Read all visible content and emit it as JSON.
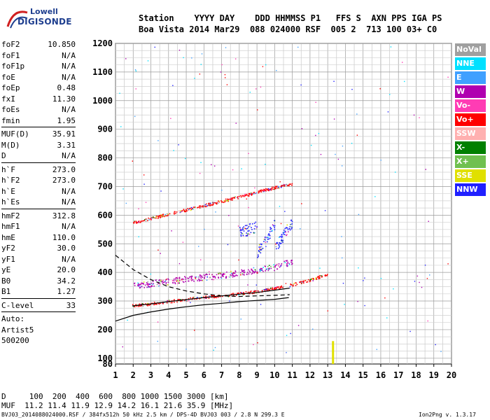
{
  "logo": {
    "line1": "Lowell",
    "line2": "DIGISONDE"
  },
  "header": {
    "labels": "Station    YYYY DAY    DDD HHMMSS P1   FFS S  AXN PPS IGA PS",
    "values": "Boa Vista 2014 Mar29  088 024000 RSF  005 2  713 100 03+ C0"
  },
  "params": {
    "group1": [
      {
        "name": "foF2",
        "value": "10.850"
      },
      {
        "name": "foF1",
        "value": "N/A"
      },
      {
        "name": "foF1p",
        "value": "N/A"
      },
      {
        "name": "foE",
        "value": "N/A"
      },
      {
        "name": "foEp",
        "value": "0.48"
      },
      {
        "name": "fxI",
        "value": "11.30"
      },
      {
        "name": "foEs",
        "value": "N/A"
      },
      {
        "name": "fmin",
        "value": "1.95"
      }
    ],
    "group2": [
      {
        "name": "MUF(D)",
        "value": "35.91"
      },
      {
        "name": "M(D)",
        "value": "3.31"
      },
      {
        "name": "D",
        "value": "N/A"
      }
    ],
    "group3": [
      {
        "name": "h`F",
        "value": "273.0"
      },
      {
        "name": "h`F2",
        "value": "273.0"
      },
      {
        "name": "h`E",
        "value": "N/A"
      },
      {
        "name": "h`Es",
        "value": "N/A"
      }
    ],
    "group4": [
      {
        "name": "hmF2",
        "value": "312.8"
      },
      {
        "name": "hmF1",
        "value": "N/A"
      },
      {
        "name": "hmE",
        "value": "110.0"
      },
      {
        "name": "yF2",
        "value": "30.0"
      },
      {
        "name": "yF1",
        "value": "N/A"
      },
      {
        "name": "yE",
        "value": "20.0"
      },
      {
        "name": "B0",
        "value": "34.2"
      },
      {
        "name": "B1",
        "value": "1.27"
      }
    ],
    "group5": [
      {
        "name": "C-level",
        "value": "33"
      }
    ],
    "auto": [
      "Auto:",
      "Artist5",
      "500200"
    ]
  },
  "legend": [
    {
      "label": "NoVal",
      "color": "#a0a0a0"
    },
    {
      "label": "NNE",
      "color": "#00e0ff"
    },
    {
      "label": "E",
      "color": "#40a0ff"
    },
    {
      "label": "W",
      "color": "#b000b0"
    },
    {
      "label": "Vo-",
      "color": "#ff3cb4"
    },
    {
      "label": "Vo+",
      "color": "#ff0000"
    },
    {
      "label": "SSW",
      "color": "#ffb0b0"
    },
    {
      "label": "X-",
      "color": "#008000"
    },
    {
      "label": "X+",
      "color": "#70c050"
    },
    {
      "label": "SSE",
      "color": "#e0e000"
    },
    {
      "label": "NNW",
      "color": "#2020ff"
    }
  ],
  "muf_table": {
    "d_label": "D",
    "d_values": [
      "100",
      "200",
      "400",
      "600",
      "800",
      "1000",
      "1500",
      "3000"
    ],
    "d_unit": "[km]",
    "muf_label": "MUF",
    "muf_values": [
      "11.2",
      "11.4",
      "11.9",
      "12.9",
      "14.2",
      "16.1",
      "21.6",
      "35.9"
    ],
    "muf_unit": "[MHz]"
  },
  "footer": {
    "left": "BVJ03_2014088024000.RSF / 384fx512h 50 kHz 2.5 km / DPS-4D BVJ03 003 / 2.8 N 299.3 E",
    "right": "Ion2Png v. 1.3.17"
  },
  "chart_data": {
    "type": "scatter",
    "xlim": [
      1,
      20
    ],
    "ylim": [
      80,
      1200
    ],
    "x_ticks": [
      1,
      2,
      3,
      4,
      5,
      6,
      7,
      8,
      9,
      10,
      11,
      12,
      13,
      14,
      15,
      16,
      17,
      18,
      19,
      20
    ],
    "y_ticks": [
      80,
      100,
      200,
      300,
      400,
      500,
      600,
      700,
      800,
      900,
      1000,
      1100,
      1200
    ],
    "grid": true,
    "legend_position": "right",
    "traces": [
      {
        "name": "Vo+",
        "points": [
          [
            1.95,
            285
          ],
          [
            3,
            292
          ],
          [
            4,
            300
          ],
          [
            5,
            307
          ],
          [
            6,
            315
          ],
          [
            7,
            320
          ],
          [
            8,
            327
          ],
          [
            9,
            335
          ],
          [
            10,
            345
          ],
          [
            11,
            358
          ],
          [
            12,
            375
          ],
          [
            13,
            395
          ]
        ]
      },
      {
        "name": "Vo+",
        "points": [
          [
            2,
            575
          ],
          [
            3,
            590
          ],
          [
            4,
            605
          ],
          [
            5,
            620
          ],
          [
            6,
            635
          ],
          [
            7,
            650
          ],
          [
            8,
            665
          ],
          [
            9,
            682
          ],
          [
            10,
            698
          ],
          [
            11,
            710
          ]
        ]
      },
      {
        "name": "W",
        "points": [
          [
            2,
            355
          ],
          [
            3,
            362
          ],
          [
            4,
            370
          ],
          [
            5,
            378
          ],
          [
            6,
            385
          ],
          [
            7,
            390
          ],
          [
            8,
            400
          ],
          [
            9,
            410
          ],
          [
            10,
            420
          ],
          [
            11,
            440
          ]
        ]
      },
      {
        "name": "NNW",
        "points": [
          [
            8,
            540
          ],
          [
            9,
            560
          ],
          [
            10,
            570
          ],
          [
            11,
            580
          ],
          [
            9,
            470
          ],
          [
            10,
            480
          ],
          [
            11,
            470
          ]
        ]
      }
    ],
    "profile_curves": [
      {
        "name": "virtual-height",
        "points": [
          [
            1,
            230
          ],
          [
            2,
            250
          ],
          [
            3,
            262
          ],
          [
            4,
            272
          ],
          [
            5,
            280
          ],
          [
            6,
            287
          ],
          [
            7,
            292
          ],
          [
            8,
            298
          ],
          [
            9,
            302
          ],
          [
            10,
            306
          ],
          [
            10.8,
            312
          ]
        ]
      },
      {
        "name": "trace-fit",
        "points": [
          [
            1.95,
            283
          ],
          [
            3,
            290
          ],
          [
            4,
            298
          ],
          [
            5,
            305
          ],
          [
            6,
            312
          ],
          [
            7,
            318
          ],
          [
            8,
            324
          ],
          [
            9,
            330
          ],
          [
            10,
            338
          ],
          [
            10.85,
            345
          ]
        ]
      },
      {
        "name": "profile-dashed",
        "points": [
          [
            1,
            460
          ],
          [
            2,
            410
          ],
          [
            3,
            375
          ],
          [
            4,
            350
          ],
          [
            5,
            335
          ],
          [
            6,
            325
          ],
          [
            7,
            318
          ],
          [
            8,
            316
          ],
          [
            9,
            318
          ],
          [
            10,
            320
          ],
          [
            10.85,
            322
          ]
        ]
      }
    ],
    "sse_bar": {
      "x": 13.3,
      "y_low": 80,
      "y_high": 160
    }
  }
}
